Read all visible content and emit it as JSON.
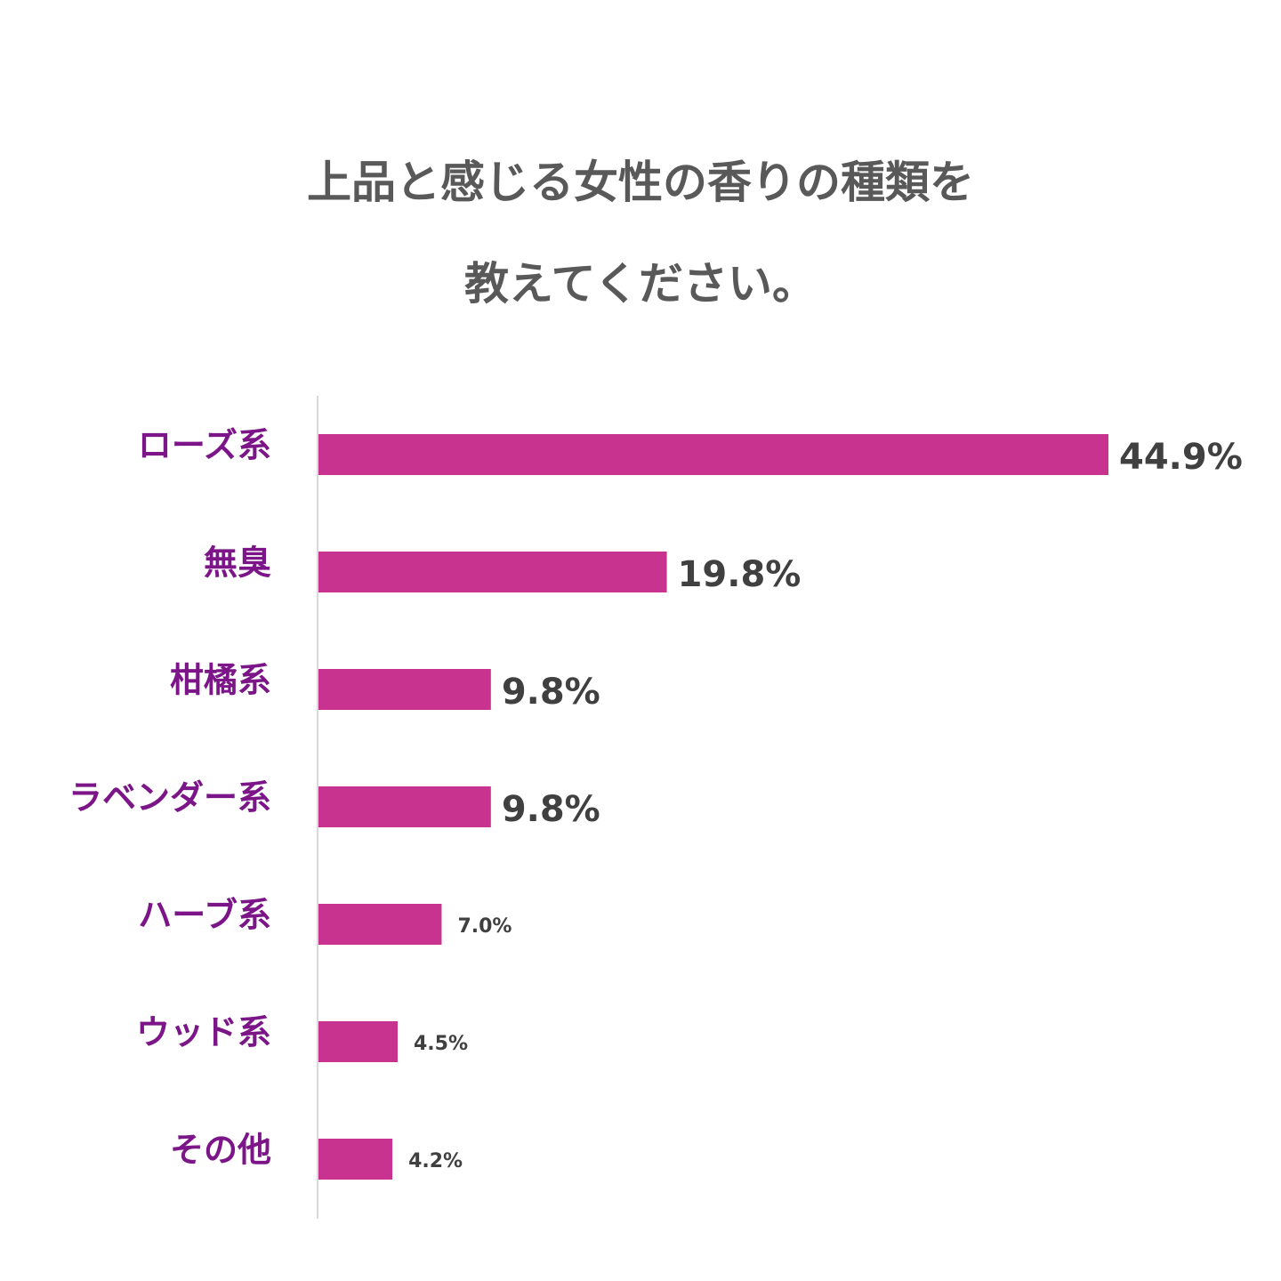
{
  "chart_data": {
    "type": "bar",
    "orientation": "horizontal",
    "title_lines": [
      "上品と感じる女性の香りの種類を",
      "教えてください。"
    ],
    "categories": [
      "ローズ系",
      "無臭",
      "柑橘系",
      "ラベンダー系",
      "ハーブ系",
      "ウッド系",
      "その他"
    ],
    "values": [
      44.9,
      19.8,
      9.8,
      9.8,
      7.0,
      4.5,
      4.2
    ],
    "value_labels": [
      "44.9%",
      "19.8%",
      "9.8%",
      "9.8%",
      "7.0%",
      "4.5%",
      "4.2%"
    ],
    "xlim": [
      0,
      44.9
    ],
    "unit": "%",
    "grid": false,
    "legend": "none",
    "colors": {
      "bar": "#c8338f",
      "category_label": "#7b1588",
      "value_label": "#404040",
      "title": "#595959",
      "axis": "#d9d9d9"
    }
  }
}
